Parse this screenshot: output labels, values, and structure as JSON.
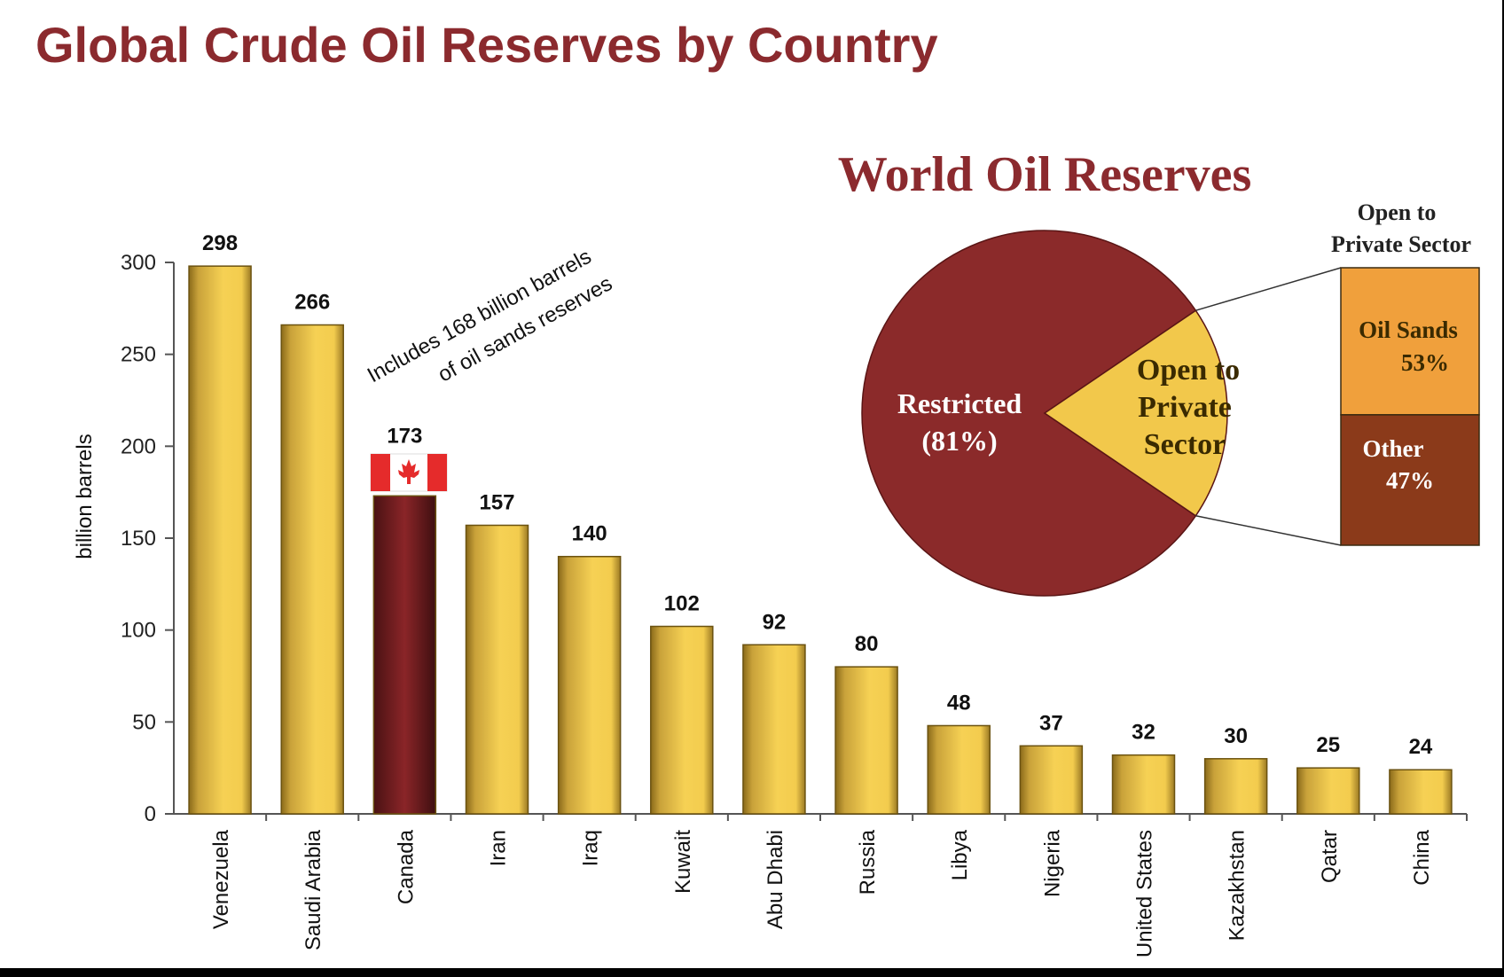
{
  "page": {
    "title": "Global Crude Oil Reserves by Country",
    "title_color": "#8b2a2e"
  },
  "chart_data": [
    {
      "type": "bar",
      "categories": [
        "Venezuela",
        "Saudi Arabia",
        "Canada",
        "Iran",
        "Iraq",
        "Kuwait",
        "Abu Dhabi",
        "Russia",
        "Libya",
        "Nigeria",
        "United States",
        "Kazakhstan",
        "Qatar",
        "China"
      ],
      "values": [
        298,
        266,
        173,
        157,
        140,
        102,
        92,
        80,
        48,
        37,
        32,
        30,
        25,
        24
      ],
      "ylabel": "billion barrels",
      "ylim": [
        0,
        300
      ],
      "yticks": [
        0,
        50,
        100,
        150,
        200,
        250,
        300
      ],
      "grid": false,
      "highlight_category": "Canada",
      "bar_color": "#f2c84b",
      "highlight_color": "#7a1f22",
      "annotation": {
        "line1": "Includes 168 billion barrels",
        "line2": "of oil sands reserves",
        "flag": "canada-flag-icon"
      }
    },
    {
      "type": "pie",
      "title": "World Oil Reserves",
      "slices": [
        {
          "label_line1": "Restricted",
          "label_line2": "(81%)",
          "value": 81,
          "color": "#8b2a2a"
        },
        {
          "label_line1": "Open to",
          "label_line2": "Private",
          "label_line3": "Sector",
          "value": 19,
          "color": "#f2c84b"
        }
      ],
      "breakdown": {
        "title_line1": "Open to",
        "title_line2": "Private Sector",
        "segments": [
          {
            "label": "Oil Sands",
            "pct_label": "53%",
            "value": 53,
            "color": "#f0a03c"
          },
          {
            "label": "Other",
            "pct_label": "47%",
            "value": 47,
            "color": "#8b3a1a"
          }
        ]
      }
    }
  ]
}
